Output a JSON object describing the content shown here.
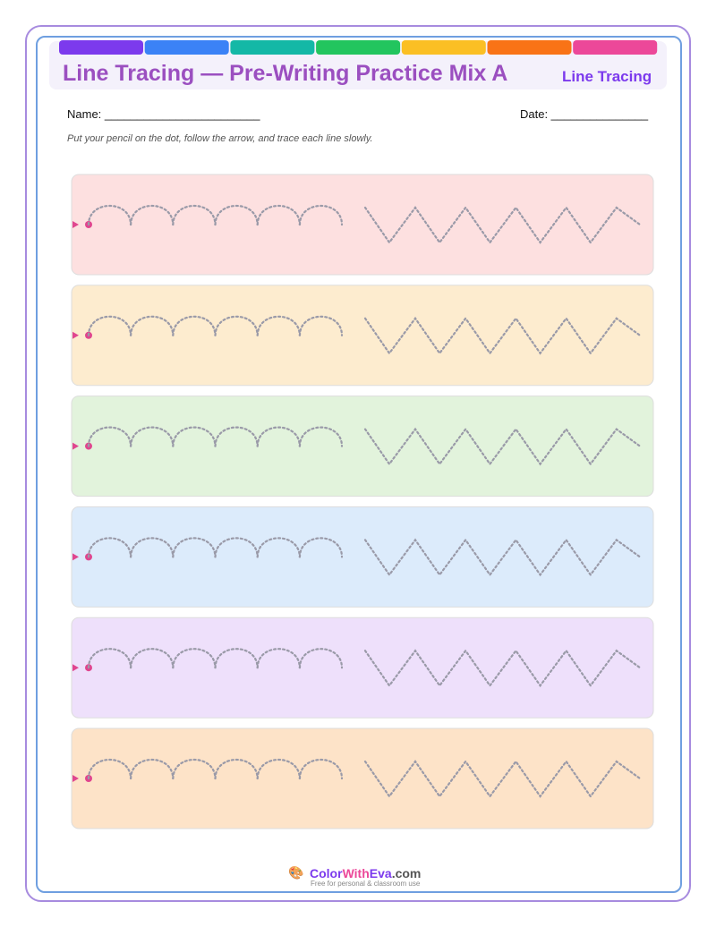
{
  "header": {
    "title": "Line Tracing — Pre-Writing Practice Mix A",
    "badge": "Line Tracing"
  },
  "fields": {
    "name": "Name: ________________________",
    "date": "Date: _______________"
  },
  "instructions": "Put your pencil on the dot, follow the arrow, and trace each line slowly.",
  "footer": {
    "brand": [
      "Color",
      "With",
      "Eva",
      ".com"
    ],
    "tagline": "Free for personal & classroom use"
  }
}
